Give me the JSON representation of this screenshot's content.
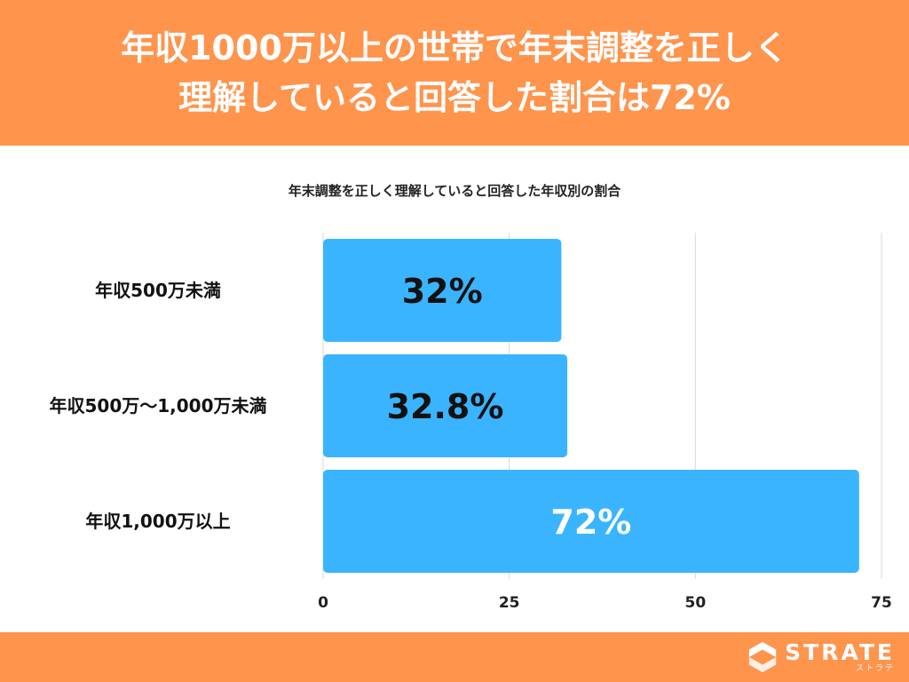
{
  "header": {
    "title_line1": "年収1000万以上の世帯で年末調整を正しく",
    "title_line2": "理解していると回答した割合は72%"
  },
  "footer": {
    "logo_name": "STRATE",
    "logo_sub": "ストラテ"
  },
  "colors": {
    "header_bg": "#FF944D",
    "bar": "#3AB4FF",
    "bar_label_dark": "#111111",
    "bar_label_light": "#ffffff",
    "grid": "#d9d9d9"
  },
  "chart_data": {
    "type": "bar",
    "orientation": "horizontal",
    "title": "年末調整を正しく理解していると回答した年収別の割合",
    "categories": [
      "年収500万未満",
      "年収500万〜1,000万未満",
      "年収1,000万以上"
    ],
    "values": [
      32,
      32.8,
      72
    ],
    "data_labels": [
      "32%",
      "32.8%",
      "72%"
    ],
    "xlim": [
      0,
      75
    ],
    "x_ticks": [
      0,
      25,
      50,
      75
    ],
    "grid": true,
    "legend": "none"
  }
}
